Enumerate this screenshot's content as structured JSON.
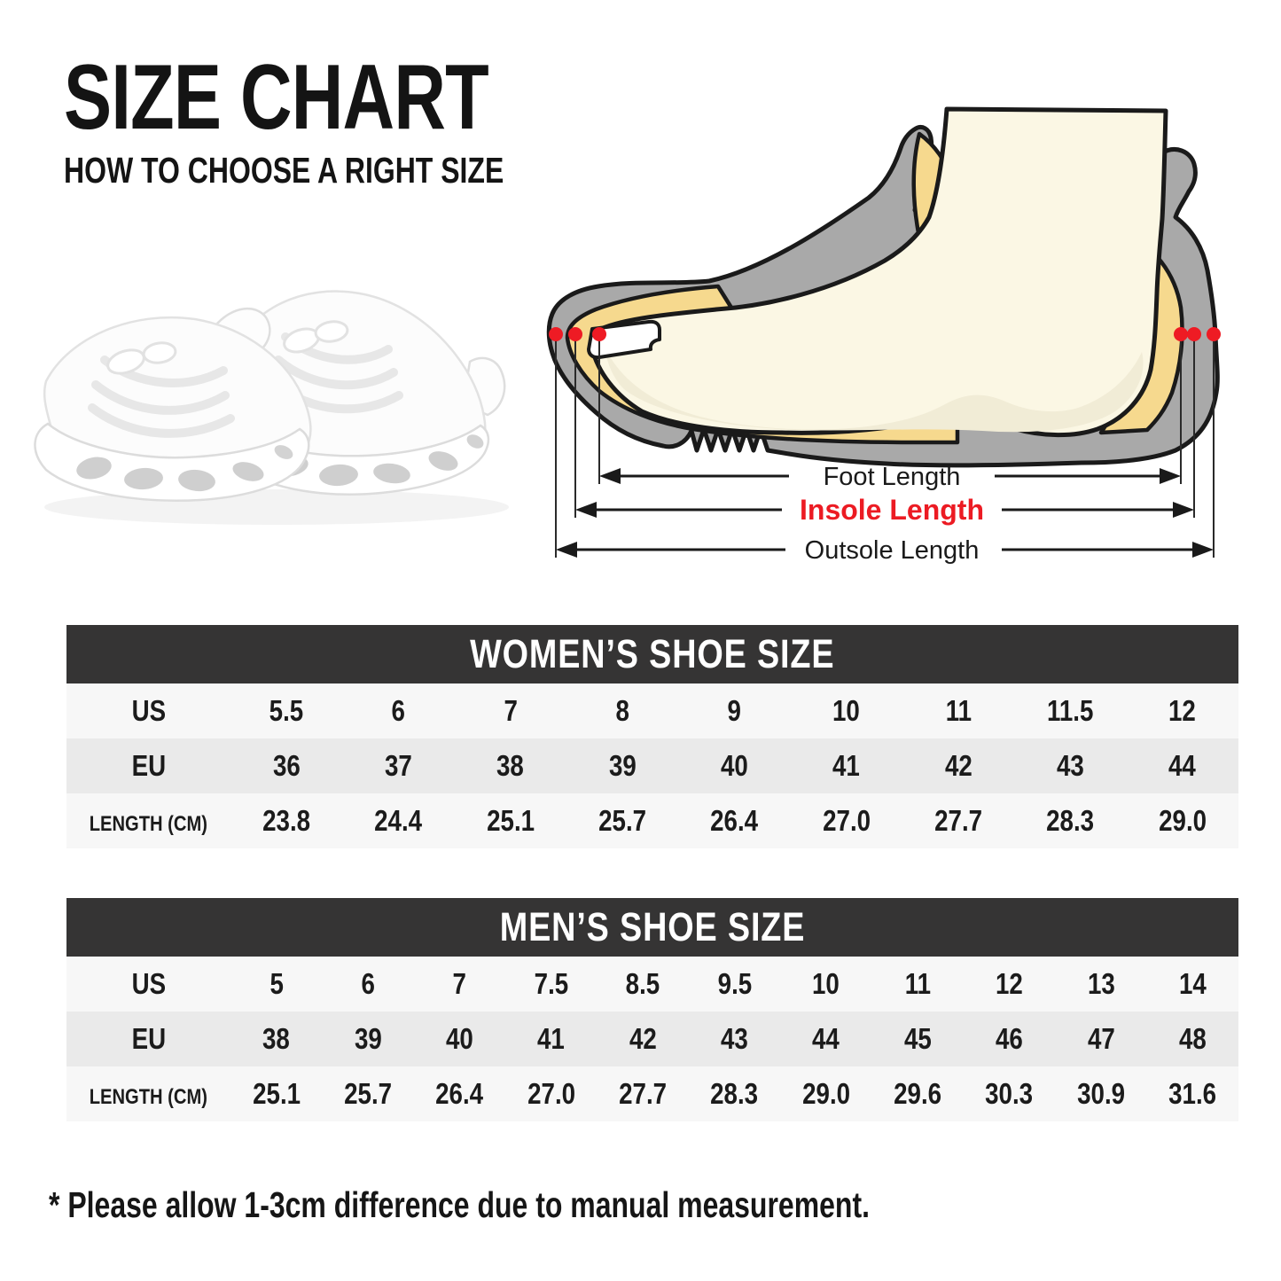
{
  "page": {
    "title": "SIZE CHART",
    "subtitle": "HOW TO CHOOSE A RIGHT SIZE",
    "note": "* Please allow 1-3cm difference due to manual measurement."
  },
  "diagram": {
    "foot_length_label": "Foot Length",
    "insole_length_label": "Insole Length",
    "outsole_length_label": "Outsole Length",
    "colors": {
      "shoe_gray": "#a9a9a9",
      "insole_yellow": "#f6d98e",
      "foot_cream": "#fbf7e4",
      "foot_shading": "#f1ecd6",
      "outline_black": "#1a1a1a",
      "marker_red": "#ee1b24",
      "insole_label_red": "#ec1b23"
    }
  },
  "table_colors": {
    "header_bg": "#353434",
    "header_text": "#ffffff",
    "row_light": "#f7f7f7",
    "row_gray": "#eaeaea",
    "text": "#1b1b1b"
  },
  "tables": [
    {
      "title": "WOMEN’S SHOE SIZE",
      "rows": [
        {
          "label": "US",
          "values": [
            "5.5",
            "6",
            "7",
            "8",
            "9",
            "10",
            "11",
            "11.5",
            "12"
          ]
        },
        {
          "label": "EU",
          "values": [
            "36",
            "37",
            "38",
            "39",
            "40",
            "41",
            "42",
            "43",
            "44"
          ]
        },
        {
          "label": "LENGTH (CM)",
          "values": [
            "23.8",
            "24.4",
            "25.1",
            "25.7",
            "26.4",
            "27.0",
            "27.7",
            "28.3",
            "29.0"
          ]
        }
      ]
    },
    {
      "title": "MEN’S SHOE SIZE",
      "rows": [
        {
          "label": "US",
          "values": [
            "5",
            "6",
            "7",
            "7.5",
            "8.5",
            "9.5",
            "10",
            "11",
            "12",
            "13",
            "14"
          ]
        },
        {
          "label": "EU",
          "values": [
            "38",
            "39",
            "40",
            "41",
            "42",
            "43",
            "44",
            "45",
            "46",
            "47",
            "48"
          ]
        },
        {
          "label": "LENGTH (CM)",
          "values": [
            "25.1",
            "25.7",
            "26.4",
            "27.0",
            "27.7",
            "28.3",
            "29.0",
            "29.6",
            "30.3",
            "30.9",
            "31.6"
          ]
        }
      ]
    }
  ],
  "chart_data": [
    {
      "type": "table",
      "title": "WOMEN’S SHOE SIZE",
      "row_headers": [
        "US",
        "EU",
        "LENGTH (CM)"
      ],
      "rows": [
        [
          "5.5",
          "6",
          "7",
          "8",
          "9",
          "10",
          "11",
          "11.5",
          "12"
        ],
        [
          "36",
          "37",
          "38",
          "39",
          "40",
          "41",
          "42",
          "43",
          "44"
        ],
        [
          "23.8",
          "24.4",
          "25.1",
          "25.7",
          "26.4",
          "27.0",
          "27.7",
          "28.3",
          "29.0"
        ]
      ]
    },
    {
      "type": "table",
      "title": "MEN’S SHOE SIZE",
      "row_headers": [
        "US",
        "EU",
        "LENGTH (CM)"
      ],
      "rows": [
        [
          "5",
          "6",
          "7",
          "7.5",
          "8.5",
          "9.5",
          "10",
          "11",
          "12",
          "13",
          "14"
        ],
        [
          "38",
          "39",
          "40",
          "41",
          "42",
          "43",
          "44",
          "45",
          "46",
          "47",
          "48"
        ],
        [
          "25.1",
          "25.7",
          "26.4",
          "27.0",
          "27.7",
          "28.3",
          "29.0",
          "29.6",
          "30.3",
          "30.9",
          "31.6"
        ]
      ]
    }
  ]
}
